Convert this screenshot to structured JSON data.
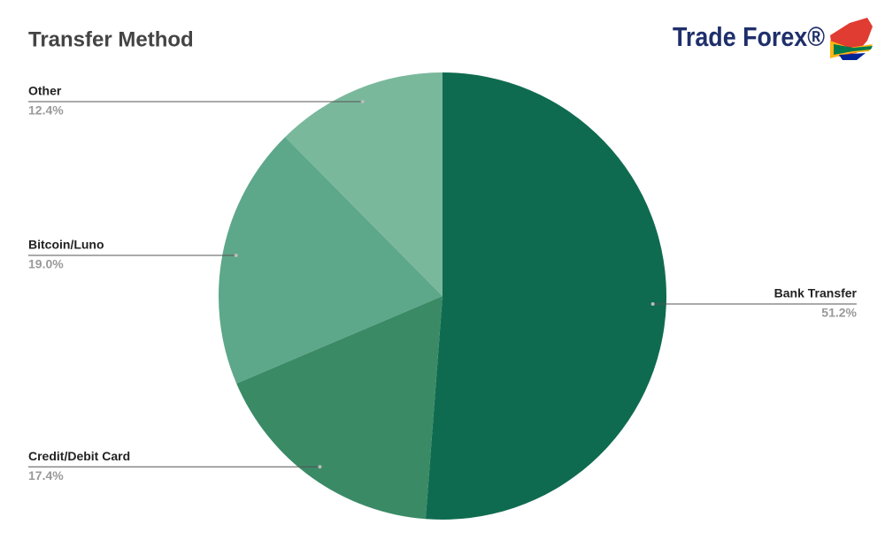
{
  "chart_data": {
    "type": "pie",
    "title": "Transfer Method",
    "logo": "Trade Forex®",
    "categories": [
      "Bank Transfer",
      "Credit/Debit Card",
      "Bitcoin/Luno",
      "Other"
    ],
    "values": [
      51.2,
      17.4,
      19.0,
      12.4
    ],
    "value_labels": [
      "51.2%",
      "17.4%",
      "19.0%",
      "12.4%"
    ],
    "colors": [
      "#0f6b50",
      "#3a8a66",
      "#5da78a",
      "#7ab89c"
    ]
  }
}
